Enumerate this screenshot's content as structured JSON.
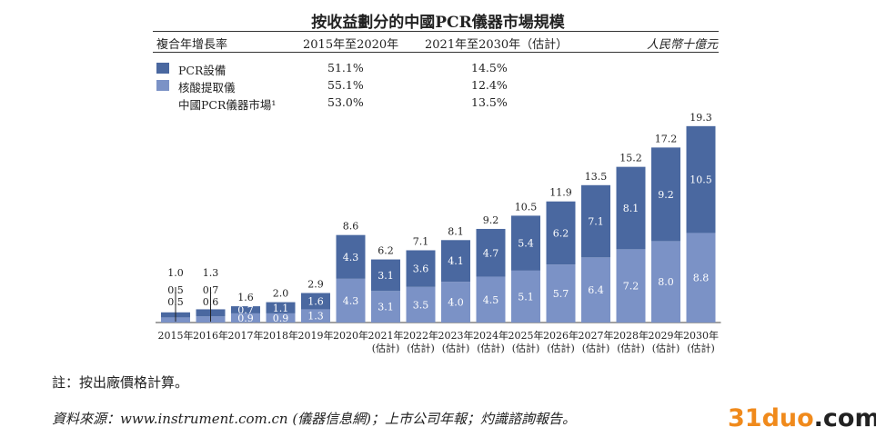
{
  "title": "按收益劃分的中國PCR儀器市場規模",
  "header": {
    "cagr_label": "複合年增長率",
    "period1": "2015年至2020年",
    "period2": "2021年至2030年（估計）",
    "unit": "人民幣十億元"
  },
  "legend": [
    {
      "label": "PCR設備",
      "cagr1": "51.1%",
      "cagr2": "14.5%",
      "color": "#4a68a0"
    },
    {
      "label": "核酸提取儀",
      "cagr1": "55.1%",
      "cagr2": "12.4%",
      "color": "#7b92c6"
    },
    {
      "label": "中國PCR儀器市場¹",
      "cagr1": "53.0%",
      "cagr2": "13.5%"
    }
  ],
  "chart_data": {
    "type": "bar",
    "stacked": true,
    "categories": [
      "2015年",
      "2016年",
      "2017年",
      "2018年",
      "2019年",
      "2020年",
      "2021年",
      "2022年",
      "2023年",
      "2024年",
      "2025年",
      "2026年",
      "2027年",
      "2028年",
      "2029年",
      "2030年"
    ],
    "estimate_label": "(估計)",
    "estimate_from_index": 6,
    "series": [
      {
        "name": "核酸提取儀",
        "color": "#7b92c6",
        "values": [
          0.5,
          0.6,
          0.9,
          0.9,
          1.3,
          4.3,
          3.1,
          3.5,
          4.0,
          4.5,
          5.1,
          5.7,
          6.4,
          7.2,
          8.0,
          8.8
        ]
      },
      {
        "name": "PCR設備",
        "color": "#4a68a0",
        "values": [
          0.5,
          0.7,
          0.7,
          1.1,
          1.6,
          4.3,
          3.1,
          3.6,
          4.1,
          4.7,
          5.4,
          6.2,
          7.1,
          8.1,
          9.2,
          10.5
        ]
      }
    ],
    "totals": [
      1.0,
      1.3,
      1.6,
      2.0,
      2.9,
      8.6,
      6.2,
      7.1,
      8.1,
      9.2,
      10.5,
      11.9,
      13.5,
      15.2,
      17.2,
      19.3
    ],
    "ylim": [
      0,
      20
    ]
  },
  "note": "註：按出廠價格計算。",
  "source": "資料來源：www.instrument.com.cn (儀器信息網)；上市公司年報；灼識諮詢報告。",
  "watermark": {
    "main": "31duo",
    "suffix": ".com"
  }
}
